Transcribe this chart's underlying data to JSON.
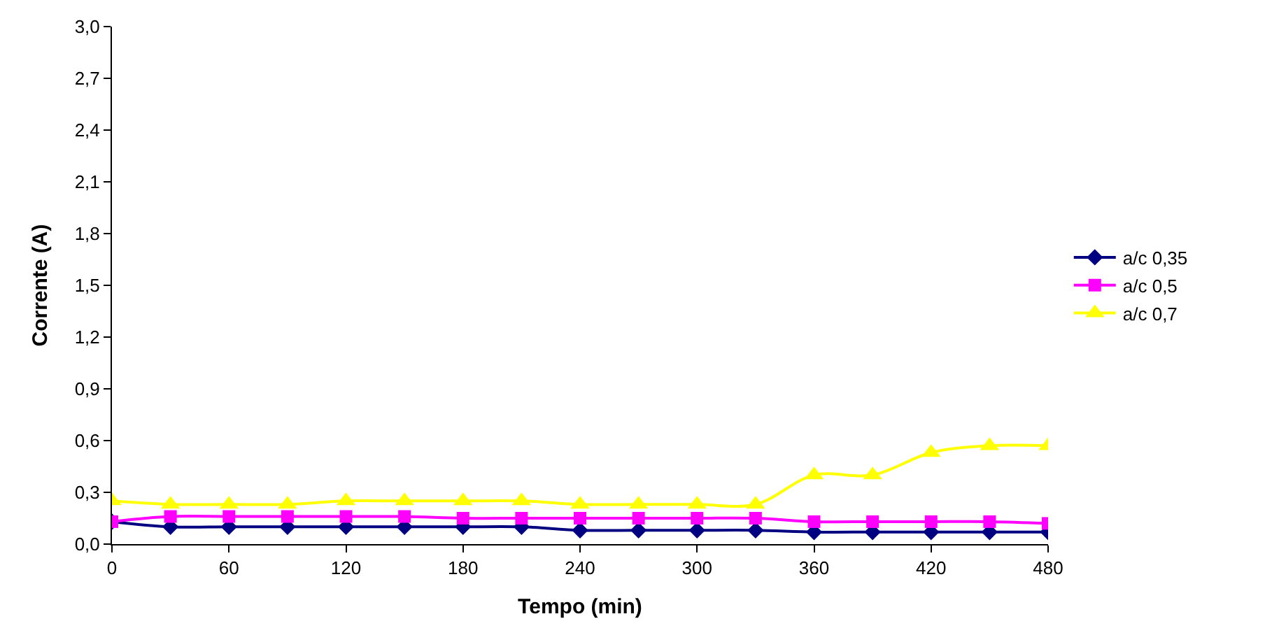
{
  "chart_data": {
    "type": "line",
    "xlabel": "Tempo (min)",
    "ylabel": "Corrente (A)",
    "x": [
      0,
      30,
      60,
      90,
      120,
      150,
      180,
      210,
      240,
      270,
      300,
      330,
      360,
      390,
      420,
      450,
      480
    ],
    "series": [
      {
        "name": "a/c 0,35",
        "color": "#000080",
        "marker": "diamond",
        "values": [
          0.13,
          0.1,
          0.1,
          0.1,
          0.1,
          0.1,
          0.1,
          0.1,
          0.08,
          0.08,
          0.08,
          0.08,
          0.07,
          0.07,
          0.07,
          0.07,
          0.07
        ]
      },
      {
        "name": "a/c 0,5",
        "color": "#ff00ff",
        "marker": "square",
        "values": [
          0.13,
          0.16,
          0.16,
          0.16,
          0.16,
          0.16,
          0.15,
          0.15,
          0.15,
          0.15,
          0.15,
          0.15,
          0.13,
          0.13,
          0.13,
          0.13,
          0.12
        ]
      },
      {
        "name": "a/c 0,7",
        "color": "#ffff00",
        "marker": "triangle",
        "values": [
          0.25,
          0.23,
          0.23,
          0.23,
          0.25,
          0.25,
          0.25,
          0.25,
          0.23,
          0.23,
          0.23,
          0.23,
          0.4,
          0.4,
          0.53,
          0.57,
          0.57
        ]
      }
    ],
    "xlim": [
      0,
      480
    ],
    "xticks": [
      0,
      60,
      120,
      180,
      240,
      300,
      360,
      420,
      480
    ],
    "ylim": [
      0,
      3.0
    ],
    "yticks": [
      {
        "value": 0,
        "label": "0,0"
      },
      {
        "value": 0.3,
        "label": "0,3"
      },
      {
        "value": 0.6,
        "label": "0,6"
      },
      {
        "value": 0.9,
        "label": "0,9"
      },
      {
        "value": 1.2,
        "label": "1,2"
      },
      {
        "value": 1.5,
        "label": "1,5"
      },
      {
        "value": 1.8,
        "label": "1,8"
      },
      {
        "value": 2.1,
        "label": "2,1"
      },
      {
        "value": 2.4,
        "label": "2,4"
      },
      {
        "value": 2.7,
        "label": "2,7"
      },
      {
        "value": 3.0,
        "label": "3,0"
      }
    ],
    "legend": "right",
    "line_style": "solid"
  }
}
